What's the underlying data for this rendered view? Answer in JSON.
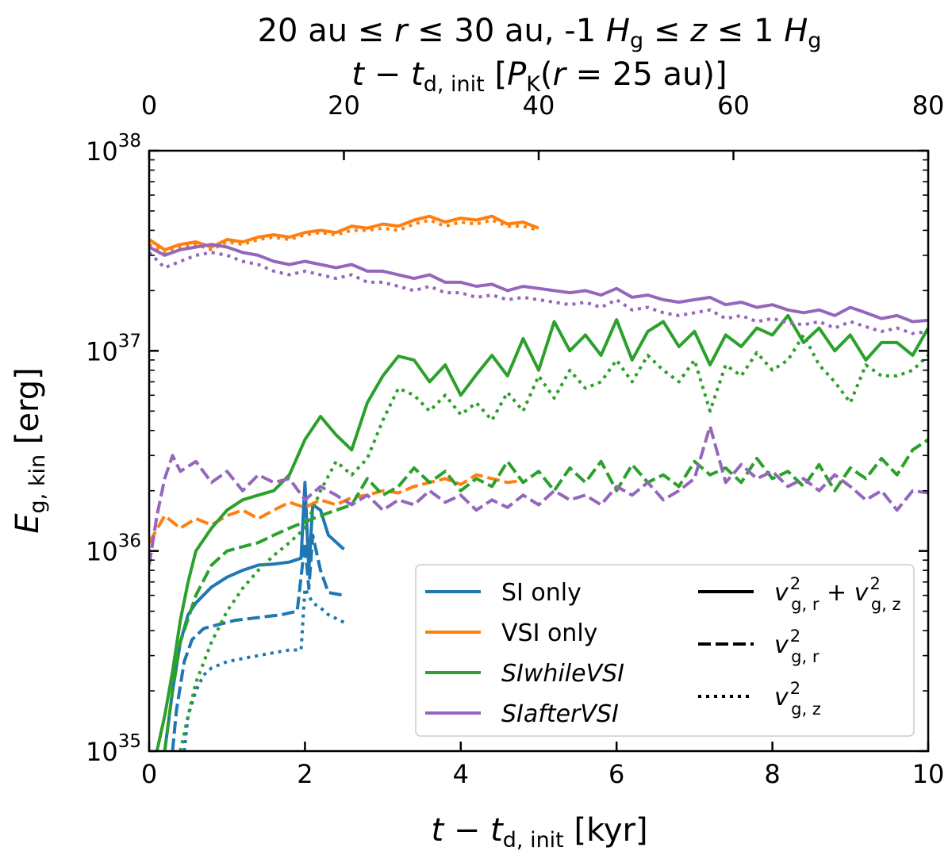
{
  "chart_data": {
    "type": "line",
    "title": "20 au ≤ r ≤ 30 au, -1 Hg ≤ z ≤ 1 Hg",
    "title_parts": {
      "r_range": "20 au ≤ ",
      "r_sym": "r",
      "mid": " ≤ 30 au, -1 ",
      "H": "H",
      "g": "g",
      "le": " ≤ ",
      "z": "z",
      "end": " ≤ 1 "
    },
    "xlabel": "t − t_d,init [kyr]",
    "xlabel_parts": {
      "t": "t",
      "minus": " − ",
      "sub": "d, init",
      "unit": " [kyr]"
    },
    "ylabel": "E_g,kin [erg]",
    "ylabel_parts": {
      "E": "E",
      "sub": "g, kin",
      "unit": " [erg]"
    },
    "top_xlabel": "t − t_d,init [P_K(r = 25 au)]",
    "top_xlabel_parts": {
      "t": "t",
      "minus": " − ",
      "sub": "d, init",
      "open": " [",
      "P": "P",
      "K": "K",
      "args": "(",
      "r": "r",
      "rest": " = 25 au)]"
    },
    "xlim": [
      0,
      10
    ],
    "ylim": [
      1e+35,
      1e+38
    ],
    "yscale": "log",
    "top_xlim": [
      0,
      80
    ],
    "x_ticks": [
      "0",
      "2",
      "4",
      "6",
      "8",
      "10"
    ],
    "top_x_ticks": [
      "0",
      "20",
      "40",
      "60",
      "80"
    ],
    "y_ticks": [
      {
        "base": "10",
        "exp": "35"
      },
      {
        "base": "10",
        "exp": "36"
      },
      {
        "base": "10",
        "exp": "37"
      },
      {
        "base": "10",
        "exp": "38"
      }
    ],
    "grid": false,
    "legend_placement": "bottom-right",
    "legend_runs": [
      {
        "label": "SI only",
        "italic": false,
        "color": "#1f77b4"
      },
      {
        "label": "VSI only",
        "italic": false,
        "color": "#ff7f0e"
      },
      {
        "label": "SIwhileVSI",
        "italic": true,
        "color": "#2ca02c"
      },
      {
        "label": "SIafterVSI",
        "italic": true,
        "color": "#9467bd"
      }
    ],
    "legend_styles": [
      {
        "style": "solid",
        "label": "v²_g,r + v²_g,z",
        "parts": [
          "v",
          "2",
          "g, r",
          " + ",
          "v",
          "2",
          "g, z"
        ]
      },
      {
        "style": "dashed",
        "label": "v²_g,r",
        "parts": [
          "v",
          "2",
          "g, r"
        ]
      },
      {
        "style": "dotted",
        "label": "v²_g,z",
        "parts": [
          "v",
          "2",
          "g, z"
        ]
      }
    ],
    "series": [
      {
        "run": "SI only",
        "style": "solid",
        "color": "#1f77b4",
        "x": [
          0.2,
          0.3,
          0.4,
          0.5,
          0.6,
          0.8,
          1.0,
          1.2,
          1.4,
          1.6,
          1.8,
          1.95,
          2.0,
          2.05,
          2.1,
          2.2,
          2.3,
          2.5
        ],
        "y": [
          1e+35,
          2e+35,
          3.5e+35,
          4.8e+35,
          5.5e+35,
          6.6e+35,
          7.4e+35,
          8e+35,
          8.5e+35,
          8.6e+35,
          8.8e+35,
          9.2e+35,
          2.2e+36,
          8e+35,
          1.7e+36,
          1.6e+36,
          1.2e+36,
          1.02e+36
        ]
      },
      {
        "run": "SI only",
        "style": "dashed",
        "color": "#1f77b4",
        "x": [
          0.3,
          0.35,
          0.45,
          0.55,
          0.7,
          0.9,
          1.1,
          1.3,
          1.5,
          1.7,
          1.9,
          2.0,
          2.05,
          2.1,
          2.2,
          2.3,
          2.5
        ],
        "y": [
          1e+35,
          1.6e+35,
          2.8e+35,
          3.6e+35,
          4.1e+35,
          4.3e+35,
          4.5e+35,
          4.6e+35,
          4.7e+35,
          4.8e+35,
          5e+35,
          1.1e+36,
          6.5e+35,
          1.2e+36,
          8e+35,
          6.2e+35,
          6e+35
        ]
      },
      {
        "run": "SI only",
        "style": "dotted",
        "color": "#1f77b4",
        "x": [
          0.45,
          0.5,
          0.6,
          0.7,
          0.8,
          1.0,
          1.2,
          1.4,
          1.6,
          1.8,
          1.95,
          2.0,
          2.1,
          2.2,
          2.3,
          2.5
        ],
        "y": [
          1e+35,
          1.5e+35,
          2e+35,
          2.4e+35,
          2.6e+35,
          2.8e+35,
          2.9e+35,
          3e+35,
          3.1e+35,
          3.2e+35,
          3.2e+35,
          6.5e+35,
          5.5e+35,
          5.2e+35,
          4.8e+35,
          4.4e+35
        ]
      },
      {
        "run": "VSI only",
        "style": "solid",
        "color": "#ff7f0e",
        "x": [
          0,
          0.2,
          0.4,
          0.6,
          0.8,
          1.0,
          1.2,
          1.4,
          1.6,
          1.8,
          2.0,
          2.2,
          2.4,
          2.6,
          2.8,
          3.0,
          3.2,
          3.4,
          3.6,
          3.8,
          4.0,
          4.2,
          4.4,
          4.6,
          4.8,
          5.0
        ],
        "y": [
          3.6e+37,
          3.2e+37,
          3.4e+37,
          3.5e+37,
          3.3e+37,
          3.6e+37,
          3.5e+37,
          3.7e+37,
          3.8e+37,
          3.7e+37,
          3.9e+37,
          4e+37,
          3.9e+37,
          4.2e+37,
          4.1e+37,
          4.3e+37,
          4.2e+37,
          4.5e+37,
          4.7e+37,
          4.4e+37,
          4.6e+37,
          4.5e+37,
          4.7e+37,
          4.3e+37,
          4.4e+37,
          4.1e+37
        ]
      },
      {
        "run": "VSI only",
        "style": "dashed",
        "color": "#ff7f0e",
        "x": [
          0,
          0.2,
          0.4,
          0.6,
          0.8,
          1.0,
          1.2,
          1.4,
          1.6,
          1.8,
          2.0,
          2.2,
          2.4,
          2.6,
          2.8,
          3.0,
          3.2,
          3.4,
          3.6,
          3.8,
          4.0,
          4.2,
          4.4,
          4.6,
          4.8
        ],
        "y": [
          1.1e+36,
          1.5e+36,
          1.3e+36,
          1.45e+36,
          1.35e+36,
          1.5e+36,
          1.6e+36,
          1.45e+36,
          1.6e+36,
          1.75e+36,
          1.65e+36,
          1.8e+36,
          1.7e+36,
          1.85e+36,
          1.9e+36,
          2e+36,
          1.95e+36,
          2.1e+36,
          2.2e+36,
          2.3e+36,
          2.15e+36,
          2.4e+36,
          2.3e+36,
          2.2e+36,
          2.25e+36
        ]
      },
      {
        "run": "VSI only",
        "style": "dotted",
        "color": "#ff7f0e",
        "x": [
          0,
          0.2,
          0.4,
          0.6,
          0.8,
          1.0,
          1.2,
          1.4,
          1.6,
          1.8,
          2.0,
          2.2,
          2.4,
          2.6,
          2.8,
          3.0,
          3.2,
          3.4,
          3.6,
          3.8,
          4.0,
          4.2,
          4.4,
          4.6,
          4.8,
          5.0
        ],
        "y": [
          3.4e+37,
          3.1e+37,
          3.3e+37,
          3.4e+37,
          3.2e+37,
          3.5e+37,
          3.4e+37,
          3.6e+37,
          3.7e+37,
          3.6e+37,
          3.8e+37,
          3.9e+37,
          3.8e+37,
          4e+37,
          4e+37,
          4.1e+37,
          4e+37,
          4.3e+37,
          4.5e+37,
          4.2e+37,
          4.4e+37,
          4.3e+37,
          4.5e+37,
          4.2e+37,
          4.2e+37,
          4e+37
        ]
      },
      {
        "run": "SIwhileVSI",
        "style": "solid",
        "color": "#2ca02c",
        "x": [
          0.1,
          0.2,
          0.3,
          0.4,
          0.5,
          0.6,
          0.8,
          1.0,
          1.2,
          1.4,
          1.6,
          1.8,
          2.0,
          2.2,
          2.4,
          2.6,
          2.8,
          3.0,
          3.2,
          3.4,
          3.6,
          3.8,
          4.0,
          4.2,
          4.4,
          4.6,
          4.8,
          5.0,
          5.2,
          5.4,
          5.6,
          5.8,
          6.0,
          6.2,
          6.4,
          6.6,
          6.8,
          7.0,
          7.2,
          7.4,
          7.6,
          7.8,
          8.0,
          8.2,
          8.4,
          8.6,
          8.8,
          9.0,
          9.2,
          9.4,
          9.6,
          9.8,
          10.0
        ],
        "y": [
          1e+35,
          1.5e+35,
          2.5e+35,
          4.5e+35,
          7e+35,
          1e+36,
          1.3e+36,
          1.6e+36,
          1.8e+36,
          1.9e+36,
          2e+36,
          2.4e+36,
          3.6e+36,
          4.7e+36,
          3.8e+36,
          3.2e+36,
          5.5e+36,
          7.5e+36,
          9.4e+36,
          9e+36,
          7e+36,
          8.5e+36,
          6e+36,
          7.6e+36,
          9.5e+36,
          7.5e+36,
          1.15e+37,
          8e+36,
          1.4e+37,
          1e+37,
          1.2e+37,
          9.5e+36,
          1.43e+37,
          9e+36,
          1.25e+37,
          1.4e+37,
          1.05e+37,
          1.25e+37,
          8.5e+36,
          1.2e+37,
          1.05e+37,
          1.3e+37,
          1.2e+37,
          1.5e+37,
          1.1e+37,
          1.3e+37,
          1e+37,
          1.2e+37,
          9e+36,
          1.1e+37,
          1.1e+37,
          9.5e+36,
          1.3e+37
        ]
      },
      {
        "run": "SIwhileVSI",
        "style": "dashed",
        "color": "#2ca02c",
        "x": [
          0.2,
          0.3,
          0.4,
          0.6,
          0.8,
          1.0,
          1.2,
          1.4,
          1.6,
          1.8,
          2.0,
          2.2,
          2.4,
          2.6,
          2.8,
          3.0,
          3.2,
          3.4,
          3.6,
          3.8,
          4.0,
          4.2,
          4.4,
          4.6,
          4.8,
          5.0,
          5.2,
          5.4,
          5.6,
          5.8,
          6.0,
          6.2,
          6.4,
          6.6,
          6.8,
          7.0,
          7.2,
          7.4,
          7.6,
          7.8,
          8.0,
          8.2,
          8.4,
          8.6,
          8.8,
          9.0,
          9.2,
          9.4,
          9.6,
          9.8,
          10.0
        ],
        "y": [
          1e+35,
          2e+35,
          3.5e+35,
          6e+35,
          8.5e+35,
          1e+36,
          1.05e+36,
          1.1e+36,
          1.2e+36,
          1.3e+36,
          1.4e+36,
          1.5e+36,
          1.6e+36,
          1.7e+36,
          2.3e+36,
          1.9e+36,
          2.1e+36,
          2.6e+36,
          2.2e+36,
          2.5e+36,
          2e+36,
          2.3e+36,
          2.1e+36,
          2.8e+36,
          2.2e+36,
          2.5e+36,
          2e+36,
          2.6e+36,
          2.2e+36,
          2.8e+36,
          2e+36,
          2.7e+36,
          2.2e+36,
          2.4e+36,
          2.1e+36,
          2.8e+36,
          2.4e+36,
          2.6e+36,
          2.2e+36,
          2.9e+36,
          2.3e+36,
          2.5e+36,
          2.1e+36,
          2.7e+36,
          2e+36,
          2.6e+36,
          2.3e+36,
          2.9e+36,
          2.4e+36,
          3.2e+36,
          3.6e+36
        ]
      },
      {
        "run": "SIwhileVSI",
        "style": "dotted",
        "color": "#2ca02c",
        "x": [
          0.4,
          0.5,
          0.6,
          0.8,
          1.0,
          1.2,
          1.4,
          1.6,
          1.8,
          2.0,
          2.2,
          2.4,
          2.6,
          2.8,
          3.0,
          3.2,
          3.4,
          3.6,
          3.8,
          4.0,
          4.2,
          4.4,
          4.6,
          4.8,
          5.0,
          5.2,
          5.4,
          5.6,
          5.8,
          6.0,
          6.2,
          6.4,
          6.6,
          6.8,
          7.0,
          7.2,
          7.4,
          7.6,
          7.8,
          8.0,
          8.2,
          8.4,
          8.6,
          8.8,
          9.0,
          9.2,
          9.4,
          9.6,
          9.8,
          10.0
        ],
        "y": [
          1e+35,
          1.5e+35,
          2.2e+35,
          3.5e+35,
          5e+35,
          6.5e+35,
          8e+35,
          9.5e+35,
          1.1e+36,
          1.3e+36,
          2e+36,
          2.8e+36,
          2.4e+36,
          2.9e+36,
          4.5e+36,
          6.5e+36,
          6e+36,
          5e+36,
          6e+36,
          4.8e+36,
          5.5e+36,
          4.5e+36,
          6.2e+36,
          5e+36,
          7.5e+36,
          5.8e+36,
          8e+36,
          6.5e+36,
          7e+36,
          9e+36,
          7e+36,
          9.5e+36,
          8e+36,
          7e+36,
          9e+36,
          5e+36,
          8.5e+36,
          7.5e+36,
          9.8e+36,
          8e+36,
          9e+36,
          1.2e+37,
          8.5e+36,
          7e+36,
          5.5e+36,
          8.5e+36,
          7.5e+36,
          7.5e+36,
          8e+36,
          9.5e+36
        ]
      },
      {
        "run": "SIafterVSI",
        "style": "solid",
        "color": "#9467bd",
        "x": [
          0,
          0.2,
          0.4,
          0.6,
          0.8,
          1.0,
          1.2,
          1.4,
          1.6,
          1.8,
          2.0,
          2.2,
          2.4,
          2.6,
          2.8,
          3.0,
          3.2,
          3.4,
          3.6,
          3.8,
          4.0,
          4.2,
          4.4,
          4.6,
          4.8,
          5.0,
          5.2,
          5.4,
          5.6,
          5.8,
          6.0,
          6.2,
          6.4,
          6.6,
          6.8,
          7.0,
          7.2,
          7.4,
          7.6,
          7.8,
          8.0,
          8.2,
          8.4,
          8.6,
          8.8,
          9.0,
          9.2,
          9.4,
          9.6,
          9.8,
          10.0
        ],
        "y": [
          3.3e+37,
          3e+37,
          3.2e+37,
          3.3e+37,
          3.4e+37,
          3.3e+37,
          3.1e+37,
          3e+37,
          2.8e+37,
          2.7e+37,
          2.8e+37,
          2.7e+37,
          2.6e+37,
          2.7e+37,
          2.5e+37,
          2.5e+37,
          2.4e+37,
          2.3e+37,
          2.4e+37,
          2.2e+37,
          2.2e+37,
          2.1e+37,
          2.15e+37,
          2e+37,
          2.1e+37,
          2.05e+37,
          2e+37,
          1.95e+37,
          2e+37,
          1.9e+37,
          2.05e+37,
          1.85e+37,
          1.9e+37,
          1.8e+37,
          1.75e+37,
          1.8e+37,
          1.85e+37,
          1.7e+37,
          1.75e+37,
          1.65e+37,
          1.7e+37,
          1.6e+37,
          1.55e+37,
          1.6e+37,
          1.5e+37,
          1.65e+37,
          1.55e+37,
          1.45e+37,
          1.5e+37,
          1.4e+37,
          1.42e+37
        ]
      },
      {
        "run": "SIafterVSI",
        "style": "dashed",
        "color": "#9467bd",
        "x": [
          0,
          0.1,
          0.2,
          0.3,
          0.4,
          0.6,
          0.8,
          1.0,
          1.2,
          1.4,
          1.6,
          1.8,
          2.0,
          2.2,
          2.4,
          2.6,
          2.8,
          3.0,
          3.2,
          3.4,
          3.6,
          3.8,
          4.0,
          4.2,
          4.4,
          4.6,
          4.8,
          5.0,
          5.2,
          5.4,
          5.6,
          5.8,
          6.0,
          6.2,
          6.4,
          6.6,
          6.8,
          7.0,
          7.2,
          7.4,
          7.6,
          7.8,
          8.0,
          8.2,
          8.4,
          8.6,
          8.8,
          9.0,
          9.2,
          9.4,
          9.6,
          9.8,
          10.0
        ],
        "y": [
          8.5e+35,
          1.5e+36,
          2.3e+36,
          3e+36,
          2.5e+36,
          2.8e+36,
          2.2e+36,
          2.5e+36,
          2e+36,
          2.4e+36,
          2.2e+36,
          2.3e+36,
          1.8e+36,
          2.1e+36,
          1.9e+36,
          1.7e+36,
          1.9e+36,
          1.6e+36,
          1.8e+36,
          1.7e+36,
          2e+36,
          1.75e+36,
          1.9e+36,
          1.6e+36,
          1.8e+36,
          1.65e+36,
          1.9e+36,
          1.7e+36,
          2e+36,
          1.8e+36,
          1.9e+36,
          1.7e+36,
          2.1e+36,
          1.9e+36,
          2.2e+36,
          1.8e+36,
          2e+36,
          2.3e+36,
          4.2e+36,
          2.2e+36,
          2.7e+36,
          2.3e+36,
          2.5e+36,
          2.1e+36,
          2.3e+36,
          2e+36,
          2.4e+36,
          2.1e+36,
          1.8e+36,
          2e+36,
          1.6e+36,
          2e+36,
          1.95e+36
        ]
      },
      {
        "run": "SIafterVSI",
        "style": "dotted",
        "color": "#9467bd",
        "x": [
          0,
          0.2,
          0.4,
          0.6,
          0.8,
          1.0,
          1.2,
          1.4,
          1.6,
          1.8,
          2.0,
          2.2,
          2.4,
          2.6,
          2.8,
          3.0,
          3.2,
          3.4,
          3.6,
          3.8,
          4.0,
          4.2,
          4.4,
          4.6,
          4.8,
          5.0,
          5.2,
          5.4,
          5.6,
          5.8,
          6.0,
          6.2,
          6.4,
          6.6,
          6.8,
          7.0,
          7.2,
          7.4,
          7.6,
          7.8,
          8.0,
          8.2,
          8.4,
          8.6,
          8.8,
          9.0,
          9.2,
          9.4,
          9.6,
          9.8,
          10.0
        ],
        "y": [
          3.1e+37,
          2.6e+37,
          2.8e+37,
          3e+37,
          3.1e+37,
          3e+37,
          2.8e+37,
          2.7e+37,
          2.5e+37,
          2.4e+37,
          2.5e+37,
          2.4e+37,
          2.3e+37,
          2.4e+37,
          2.2e+37,
          2.2e+37,
          2.1e+37,
          2e+37,
          2.1e+37,
          1.95e+37,
          1.95e+37,
          1.85e+37,
          1.9e+37,
          1.8e+37,
          1.85e+37,
          1.8e+37,
          1.75e+37,
          1.7e+37,
          1.75e+37,
          1.65e+37,
          1.8e+37,
          1.6e+37,
          1.65e+37,
          1.55e+37,
          1.5e+37,
          1.55e+37,
          1.6e+37,
          1.45e+37,
          1.5e+37,
          1.4e+37,
          1.45e+37,
          1.38e+37,
          1.35e+37,
          1.4e+37,
          1.3e+37,
          1.4e+37,
          1.32e+37,
          1.25e+37,
          1.3e+37,
          1.22e+37,
          1.25e+37
        ]
      }
    ]
  }
}
